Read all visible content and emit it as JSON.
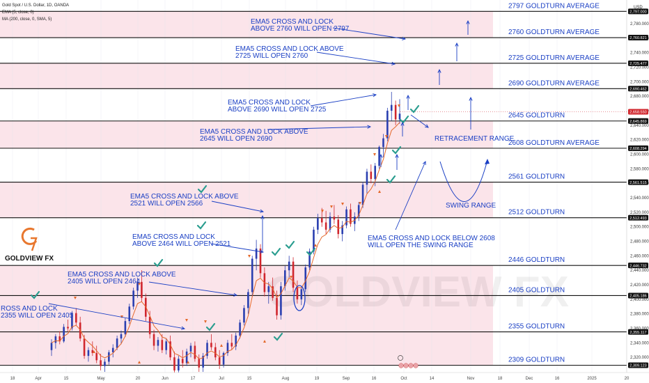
{
  "header": {
    "symbol": "Gold Spot / U.S. Dollar, 1D, OANDA",
    "indicator1": "EMA (5, close, 0)",
    "indicator2": "MA (200, close, 0, SMA, 5)",
    "currency": "USD"
  },
  "logo": {
    "text": "GOLDVIEW FX",
    "watermark": "GOLDVIEW FX"
  },
  "chart_data": {
    "type": "candlestick",
    "ylim": [
      2300,
      2805
    ],
    "y_ticks": [
      2320,
      2340,
      2360,
      2380,
      2400,
      2420,
      2440,
      2460,
      2480,
      2500,
      2520,
      2540,
      2560,
      2580,
      2600,
      2620,
      2640,
      2660,
      2680,
      2700,
      2720,
      2740,
      2760,
      2780
    ],
    "x_ticks": [
      "18",
      "Apr",
      "15",
      "May",
      "20",
      "Jun",
      "17",
      "Jul",
      "15",
      "Aug",
      "19",
      "Sep",
      "16",
      "Oct",
      "14",
      "Nov",
      "18",
      "Dec",
      "16",
      "2025",
      "20"
    ],
    "candles": [
      [
        2330,
        2345,
        2322,
        2340
      ],
      [
        2340,
        2352,
        2332,
        2349
      ],
      [
        2349,
        2356,
        2338,
        2342
      ],
      [
        2342,
        2366,
        2340,
        2362
      ],
      [
        2362,
        2372,
        2356,
        2360
      ],
      [
        2360,
        2384,
        2357,
        2381
      ],
      [
        2381,
        2388,
        2364,
        2368
      ],
      [
        2368,
        2376,
        2342,
        2346
      ],
      [
        2346,
        2351,
        2318,
        2322
      ],
      [
        2322,
        2334,
        2314,
        2330
      ],
      [
        2330,
        2342,
        2322,
        2326
      ],
      [
        2326,
        2336,
        2312,
        2316
      ],
      [
        2316,
        2325,
        2302,
        2308
      ],
      [
        2308,
        2318,
        2300,
        2314
      ],
      [
        2314,
        2330,
        2310,
        2327
      ],
      [
        2327,
        2338,
        2320,
        2333
      ],
      [
        2333,
        2350,
        2330,
        2346
      ],
      [
        2346,
        2357,
        2338,
        2352
      ],
      [
        2352,
        2374,
        2348,
        2370
      ],
      [
        2370,
        2394,
        2366,
        2390
      ],
      [
        2390,
        2416,
        2386,
        2412
      ],
      [
        2412,
        2430,
        2402,
        2424
      ],
      [
        2424,
        2440,
        2396,
        2402
      ],
      [
        2402,
        2408,
        2370,
        2376
      ],
      [
        2376,
        2384,
        2346,
        2352
      ],
      [
        2352,
        2358,
        2330,
        2336
      ],
      [
        2336,
        2348,
        2328,
        2344
      ],
      [
        2344,
        2352,
        2326,
        2330
      ],
      [
        2330,
        2346,
        2324,
        2342
      ],
      [
        2342,
        2350,
        2316,
        2320
      ],
      [
        2320,
        2328,
        2296,
        2302
      ],
      [
        2302,
        2322,
        2298,
        2318
      ],
      [
        2318,
        2330,
        2306,
        2312
      ],
      [
        2312,
        2332,
        2308,
        2328
      ],
      [
        2328,
        2340,
        2320,
        2336
      ],
      [
        2336,
        2342,
        2314,
        2318
      ],
      [
        2318,
        2324,
        2300,
        2306
      ],
      [
        2306,
        2326,
        2300,
        2322
      ],
      [
        2322,
        2344,
        2318,
        2340
      ],
      [
        2340,
        2352,
        2330,
        2334
      ],
      [
        2334,
        2340,
        2316,
        2320
      ],
      [
        2320,
        2330,
        2304,
        2310
      ],
      [
        2310,
        2328,
        2306,
        2326
      ],
      [
        2326,
        2344,
        2322,
        2340
      ],
      [
        2340,
        2352,
        2330,
        2335
      ],
      [
        2335,
        2354,
        2330,
        2350
      ],
      [
        2350,
        2372,
        2346,
        2368
      ],
      [
        2368,
        2392,
        2364,
        2388
      ],
      [
        2388,
        2414,
        2380,
        2410
      ],
      [
        2410,
        2460,
        2404,
        2456
      ],
      [
        2456,
        2482,
        2440,
        2470
      ],
      [
        2470,
        2476,
        2430,
        2436
      ],
      [
        2436,
        2444,
        2404,
        2410
      ],
      [
        2410,
        2424,
        2394,
        2418
      ],
      [
        2418,
        2430,
        2398,
        2402
      ],
      [
        2402,
        2412,
        2372,
        2378
      ],
      [
        2378,
        2424,
        2372,
        2418
      ],
      [
        2418,
        2446,
        2412,
        2440
      ],
      [
        2440,
        2460,
        2430,
        2452
      ],
      [
        2452,
        2458,
        2410,
        2416
      ],
      [
        2416,
        2426,
        2394,
        2400
      ],
      [
        2400,
        2418,
        2392,
        2414
      ],
      [
        2414,
        2448,
        2410,
        2444
      ],
      [
        2444,
        2470,
        2440,
        2466
      ],
      [
        2466,
        2500,
        2462,
        2496
      ],
      [
        2496,
        2518,
        2490,
        2512
      ],
      [
        2512,
        2526,
        2500,
        2506
      ],
      [
        2506,
        2522,
        2490,
        2496
      ],
      [
        2496,
        2520,
        2492,
        2514
      ],
      [
        2514,
        2530,
        2504,
        2510
      ],
      [
        2510,
        2516,
        2484,
        2490
      ],
      [
        2490,
        2508,
        2480,
        2502
      ],
      [
        2502,
        2528,
        2498,
        2524
      ],
      [
        2524,
        2532,
        2500,
        2504
      ],
      [
        2504,
        2520,
        2494,
        2514
      ],
      [
        2514,
        2534,
        2508,
        2530
      ],
      [
        2530,
        2562,
        2526,
        2558
      ],
      [
        2558,
        2580,
        2546,
        2576
      ],
      [
        2576,
        2586,
        2560,
        2566
      ],
      [
        2566,
        2588,
        2556,
        2584
      ],
      [
        2584,
        2612,
        2580,
        2610
      ],
      [
        2610,
        2628,
        2596,
        2622
      ],
      [
        2622,
        2664,
        2618,
        2660
      ],
      [
        2660,
        2686,
        2646,
        2668
      ],
      [
        2668,
        2674,
        2640,
        2648
      ],
      [
        2648,
        2676,
        2642,
        2656
      ]
    ],
    "ema_label": "EMA5",
    "levels": [
      {
        "label": "2797 GOLDTURN AVERAGE",
        "value": 2797.0,
        "badge": "2,797.000"
      },
      {
        "label": "2760 GOLDTURN AVERAGE",
        "value": 2760.821,
        "badge": "2,760.821"
      },
      {
        "label": "2725 GOLDTURN AVERAGE",
        "value": 2725.477,
        "badge": "2,725.477"
      },
      {
        "label": "2690 GOLDTURN AVERAGE",
        "value": 2690.462,
        "badge": "2,690.462"
      },
      {
        "label": "2645 GOLDTURN",
        "value": 2645.869,
        "badge": "2,645.869"
      },
      {
        "label": "2608 GOLDTURN AVERAGE",
        "value": 2608.294,
        "badge": "2,608.294"
      },
      {
        "label": "2561 GOLDTURN",
        "value": 2561.515,
        "badge": "2,561.515"
      },
      {
        "label": "2512 GOLDTURN",
        "value": 2512.493,
        "badge": "2,512.493"
      },
      {
        "label": "2446 GOLDTURN",
        "value": 2446.732,
        "badge": "2,446.732"
      },
      {
        "label": "2405 GOLDTURN",
        "value": 2405.186,
        "badge": "2,405.186"
      },
      {
        "label": "2355 GOLDTURN",
        "value": 2355.117,
        "badge": "2,355.117"
      },
      {
        "label": "2309 GOLDTURN",
        "value": 2309.123,
        "badge": "2,309.123"
      }
    ],
    "current_price": {
      "value": 2658.55,
      "badge": "2,658.550"
    },
    "pink_bands": [
      [
        2760.821,
        2797.0
      ],
      [
        2690.462,
        2725.477
      ],
      [
        2608.294,
        2645.869
      ],
      [
        2512.493,
        2561.515
      ],
      [
        2309.123,
        2355.117
      ],
      [
        2355.117,
        2405.186
      ],
      [
        2405.186,
        2446.732
      ]
    ],
    "annotations": [
      {
        "lines": [
          "EMA5 CROSS AND LOCK",
          "ABOVE 2760 WILL OPEN 2797"
        ]
      },
      {
        "lines": [
          "EMA5 CROSS AND LOCK ABOVE",
          "2725  WILL OPEN 2760"
        ]
      },
      {
        "lines": [
          "EMA5 CROSS AND LOCK",
          "ABOVE 2690 WILL OPEN 2725"
        ]
      },
      {
        "lines": [
          "EMA5 CROSS AND LOCK ABOVE",
          "2645 WILL OPEN 2690"
        ]
      },
      {
        "lines": [
          "RETRACEMENT RANGE"
        ]
      },
      {
        "lines": [
          "EMA5 CROSS AND LOCK ABOVE",
          "2521 WILL OPEN 2566"
        ]
      },
      {
        "lines": [
          "SWING RANGE"
        ]
      },
      {
        "lines": [
          "EMA5 CROSS AND LOCK",
          "ABOVE 2464 WILL OPEN 2521"
        ]
      },
      {
        "lines": [
          "EMA5 CROSS AND LOCK BELOW 2608",
          "WILL OPEN THE SWING RANGE"
        ]
      },
      {
        "lines": [
          "EMA5 CROSS AND LOCK ABOVE",
          "2405 WILL OPEN 2464"
        ]
      },
      {
        "lines": [
          "ROSS AND LOCK",
          "2355 WILL OPEN 2405"
        ]
      }
    ]
  },
  "colors": {
    "up": "#2a3fb0",
    "down": "#d0262d",
    "ema": "#e4682a",
    "level_text": "#1a3fc4",
    "band": "#fbe4ea",
    "check": "#2a9d8f"
  }
}
